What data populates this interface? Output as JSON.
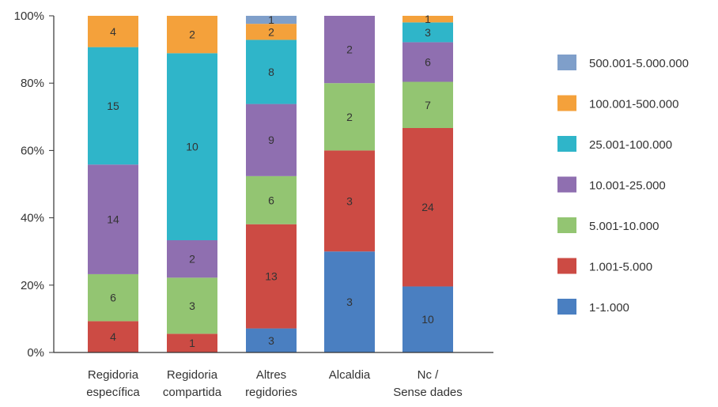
{
  "chart_data": {
    "type": "bar",
    "stacked": "percent",
    "categories": [
      [
        "Regidoria",
        "específica"
      ],
      [
        "Regidoria",
        "compartida"
      ],
      [
        "Altres",
        "regidories"
      ],
      [
        "Alcaldia"
      ],
      [
        "Nc /",
        "Sense dades"
      ]
    ],
    "y_ticks": [
      "0%",
      "20%",
      "40%",
      "60%",
      "80%",
      "100%"
    ],
    "ylim": [
      0,
      100
    ],
    "legend_position": "right",
    "grid": false,
    "series": [
      {
        "name": "1-1.000",
        "color": "#4a7fc1",
        "values": [
          0,
          0,
          3,
          3,
          10
        ]
      },
      {
        "name": "1.001-5.000",
        "color": "#cc4b44",
        "values": [
          4,
          1,
          13,
          3,
          24
        ]
      },
      {
        "name": "5.001-10.000",
        "color": "#93c572",
        "values": [
          6,
          3,
          6,
          2,
          7
        ]
      },
      {
        "name": "10.001-25.000",
        "color": "#8f6fb0",
        "values": [
          14,
          2,
          9,
          2,
          6
        ]
      },
      {
        "name": "25.001-100.000",
        "color": "#2fb5c9",
        "values": [
          15,
          10,
          8,
          0,
          3
        ]
      },
      {
        "name": "100.001-500.000",
        "color": "#f4a13b",
        "values": [
          4,
          2,
          2,
          0,
          1
        ]
      },
      {
        "name": "500.001-5.000.000",
        "color": "#7f9fca",
        "values": [
          0,
          0,
          1,
          0,
          0
        ]
      }
    ]
  }
}
